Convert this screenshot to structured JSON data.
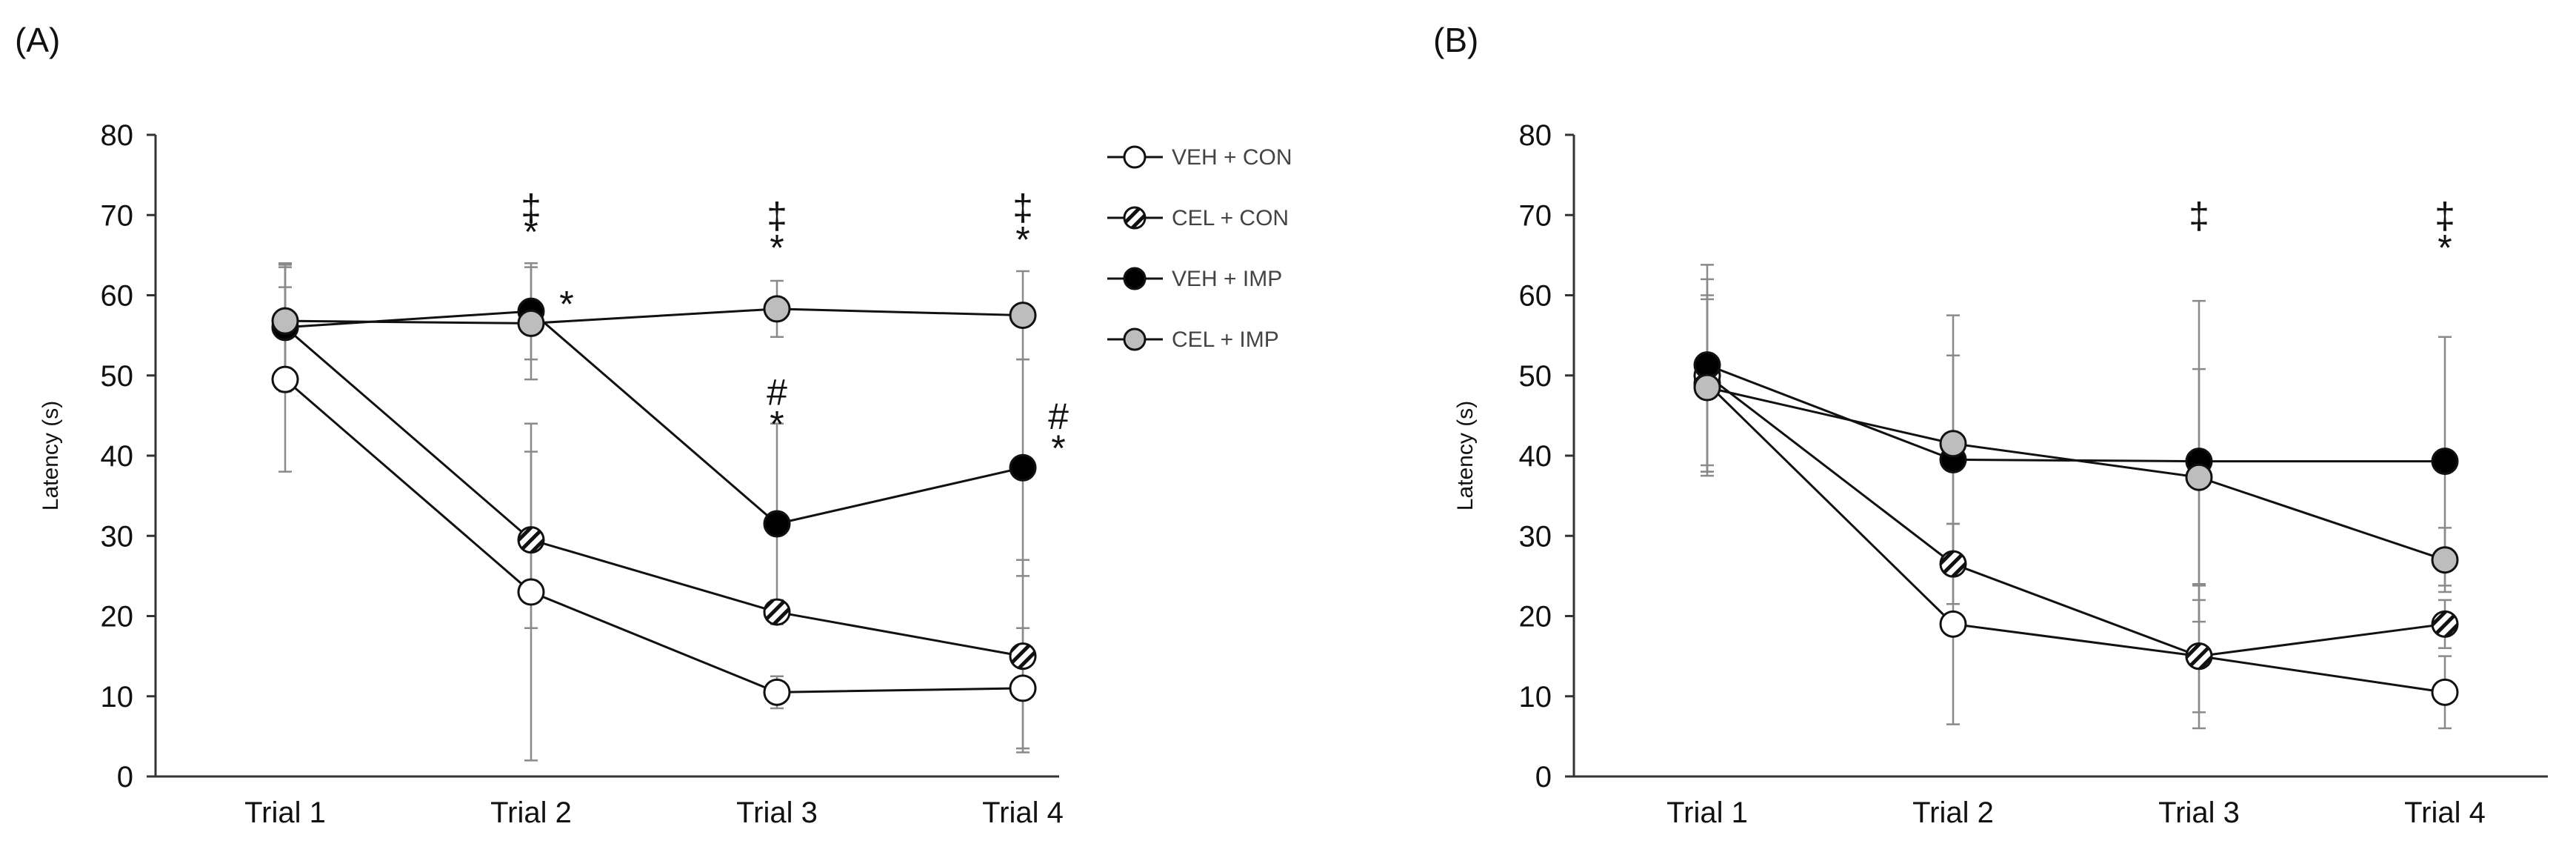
{
  "chart_data": [
    {
      "panel_label": "(A)",
      "type": "line",
      "title": "",
      "xlabel": "",
      "ylabel": "Latency (s)",
      "categories": [
        "Trial 1",
        "Trial 2",
        "Trial 3",
        "Trial 4"
      ],
      "ylim": [
        0,
        80
      ],
      "yticks": [
        "0",
        "10",
        "20",
        "30",
        "40",
        "50",
        "60",
        "70",
        "80"
      ],
      "grid": false,
      "legend_position": "top-right",
      "series": [
        {
          "name": "VEH + CON",
          "marker": "open",
          "values": [
            49.5,
            23,
            10.5,
            11
          ],
          "errors": [
            11.5,
            21,
            2,
            7.5
          ]
        },
        {
          "name": "CEL + CON",
          "marker": "hatched",
          "values": [
            56,
            29.5,
            20.5,
            15
          ],
          "errors": [
            8,
            11,
            1.5,
            12
          ]
        },
        {
          "name": "VEH + IMP",
          "marker": "filled",
          "values": [
            56,
            58,
            31.5,
            38.5
          ],
          "errors": [
            7.5,
            6,
            12.5,
            13.5
          ]
        },
        {
          "name": "CEL + IMP",
          "marker": "gray",
          "values": [
            56.8,
            56.5,
            58.3,
            57.5
          ],
          "errors": [
            7,
            7,
            3.5,
            5.5
          ]
        }
      ],
      "annotations": [
        {
          "category": "Trial 2",
          "y": 71,
          "text": "‡"
        },
        {
          "category": "Trial 2",
          "y": 68,
          "text": "*"
        },
        {
          "category": "Trial 2",
          "y": 59,
          "dx": 1,
          "text": "*"
        },
        {
          "category": "Trial 3",
          "y": 70,
          "text": "‡"
        },
        {
          "category": "Trial 3",
          "y": 66,
          "text": "*"
        },
        {
          "category": "Trial 3",
          "y": 48,
          "text": "#"
        },
        {
          "category": "Trial 3",
          "y": 44,
          "text": "*"
        },
        {
          "category": "Trial 4",
          "y": 71,
          "text": "‡"
        },
        {
          "category": "Trial 4",
          "y": 67,
          "text": "*"
        },
        {
          "category": "Trial 4",
          "y": 45,
          "dx": 1,
          "text": "#"
        },
        {
          "category": "Trial 4",
          "y": 41,
          "dx": 1,
          "text": "*"
        }
      ]
    },
    {
      "panel_label": "(B)",
      "type": "line",
      "title": "",
      "xlabel": "",
      "ylabel": "Latency (s)",
      "categories": [
        "Trial 1",
        "Trial 2",
        "Trial 3",
        "Trial 4"
      ],
      "ylim": [
        0,
        80
      ],
      "yticks": [
        "0",
        "10",
        "20",
        "30",
        "40",
        "50",
        "60",
        "70",
        "80"
      ],
      "grid": false,
      "legend_position": "none",
      "series": [
        {
          "name": "VEH + CON",
          "marker": "open",
          "values": [
            49,
            19,
            15,
            10.5
          ],
          "errors": [
            11,
            12.5,
            7,
            4.5
          ]
        },
        {
          "name": "CEL + CON",
          "marker": "hatched",
          "values": [
            50,
            26.5,
            15,
            19
          ],
          "errors": [
            12,
            5,
            9,
            3
          ]
        },
        {
          "name": "VEH + IMP",
          "marker": "filled",
          "values": [
            51.3,
            39.5,
            39.3,
            39.3
          ],
          "errors": [
            12.5,
            13,
            20,
            15.5
          ]
        },
        {
          "name": "CEL + IMP",
          "marker": "gray",
          "values": [
            48.5,
            41.5,
            37.3,
            27
          ],
          "errors": [
            11,
            16,
            13.5,
            4
          ]
        }
      ],
      "annotations": [
        {
          "category": "Trial 3",
          "y": 70,
          "text": "‡"
        },
        {
          "category": "Trial 4",
          "y": 70,
          "text": "‡"
        },
        {
          "category": "Trial 4",
          "y": 66,
          "text": "*"
        }
      ]
    }
  ]
}
